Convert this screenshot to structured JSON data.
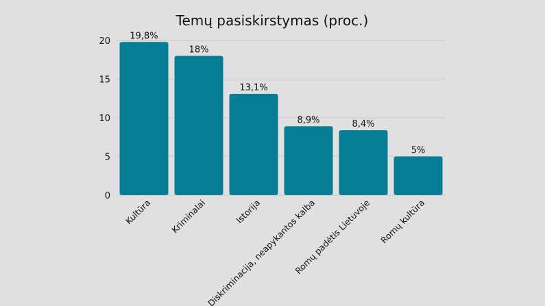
{
  "chart_data": {
    "type": "bar",
    "title": "Temų pasiskirstymas (proc.)",
    "xlabel": "",
    "ylabel": "",
    "categories": [
      "Kultūra",
      "Kriminalai",
      "Istorija",
      "Diskriminacija, neapykantos kalba",
      "Romų padėtis Lietuvoje",
      "Romų kultūra"
    ],
    "values": [
      19.8,
      18,
      13.1,
      8.9,
      8.4,
      5
    ],
    "data_labels": [
      "19,8%",
      "18%",
      "13,1%",
      "8,9%",
      "8,4%",
      "5%"
    ],
    "ylim": [
      0,
      20
    ],
    "yticks": [
      0,
      5,
      10,
      15,
      20
    ],
    "grid": true,
    "bar_color": "#077e96",
    "grid_color": "#c8c8c8",
    "background": "#e0e0e0"
  }
}
